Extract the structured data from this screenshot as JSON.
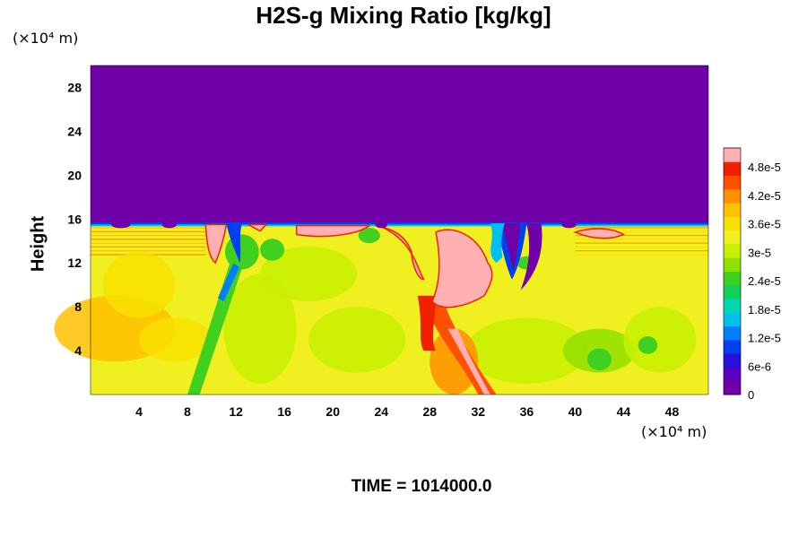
{
  "chart_data": {
    "type": "heatmap",
    "title": "H2S-g Mixing Ratio [kg/kg]",
    "ylabel": "Height",
    "xlabel": "",
    "x_unit": "(×10⁴ m)",
    "y_unit": "(×10⁴ m)",
    "footer": "TIME = 1014000.0",
    "xlim": [
      0,
      51
    ],
    "ylim": [
      0,
      30
    ],
    "x_ticks": [
      "4",
      "8",
      "12",
      "16",
      "20",
      "24",
      "28",
      "32",
      "36",
      "40",
      "44",
      "48"
    ],
    "y_ticks": [
      "4",
      "8",
      "12",
      "16",
      "20",
      "24",
      "28"
    ],
    "colorbar": {
      "range": [
        0,
        5.2e-05
      ],
      "ticks": [
        "0",
        "6e-6",
        "1.2e-5",
        "1.8e-5",
        "2.4e-5",
        "3e-5",
        "3.6e-5",
        "4.2e-5",
        "4.8e-5"
      ],
      "tick_values": [
        0,
        6e-06,
        1.2e-05,
        1.8e-05,
        2.4e-05,
        3e-05,
        3.6e-05,
        4.2e-05,
        4.8e-05
      ],
      "colors": [
        "#7000a8",
        "#5a00c0",
        "#2a10d8",
        "#0040f0",
        "#0080f8",
        "#00c0f0",
        "#00d8b0",
        "#10d060",
        "#40d020",
        "#90e000",
        "#c8f000",
        "#f0f020",
        "#f8e000",
        "#ffc000",
        "#ff9000",
        "#ff5000",
        "#f02000",
        "#ffb0b0"
      ]
    },
    "regions": {
      "upper_layer": {
        "y_range": [
          15.5,
          30
        ],
        "value": 0
      },
      "lower_layer": {
        "y_range": [
          0,
          15.5
        ],
        "value_approx": 3.6e-05
      },
      "saturated_plumes_x": [
        [
          10,
          11
        ],
        [
          17,
          23
        ],
        [
          26,
          33
        ],
        [
          40,
          44
        ]
      ],
      "depleted_intrusions_x": [
        [
          11,
          12.5
        ],
        [
          34,
          36.5
        ]
      ]
    }
  }
}
